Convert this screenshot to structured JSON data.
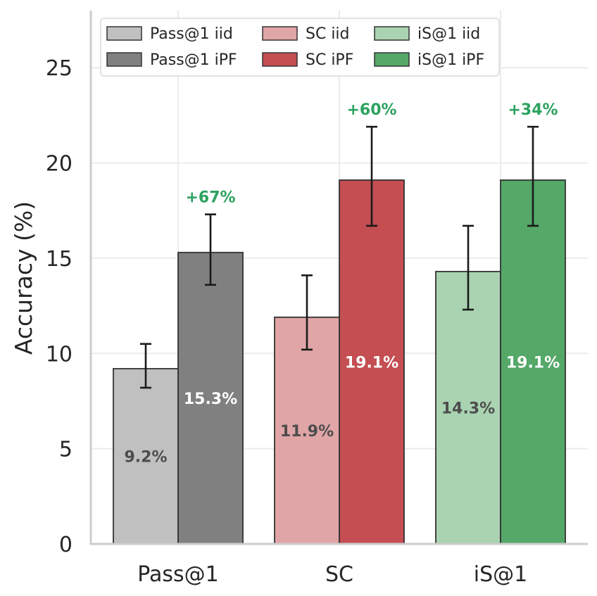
{
  "chart_data": {
    "type": "bar",
    "title": "",
    "xlabel": "",
    "ylabel": "Accuracy (%)",
    "ylim": [
      0,
      28
    ],
    "yticks": [
      "0",
      "5",
      "10",
      "15",
      "20",
      "25"
    ],
    "grid": true,
    "legend_position": "top-left",
    "categories": [
      "Pass@1",
      "SC",
      "iS@1"
    ],
    "groups": [
      {
        "category": "Pass@1",
        "bars": [
          {
            "series": "Pass@1 iid",
            "value": 9.2,
            "err_low": 8.2,
            "err_high": 10.5,
            "label": "9.2%",
            "color": "#c0c0c0",
            "label_color": "#4d4d4d"
          },
          {
            "series": "Pass@1 iPF",
            "value": 15.3,
            "err_low": 13.6,
            "err_high": 17.3,
            "label": "15.3%",
            "color": "#808080",
            "label_color": "#ffffff"
          }
        ],
        "improvement": "+67%"
      },
      {
        "category": "SC",
        "bars": [
          {
            "series": "SC iid",
            "value": 11.9,
            "err_low": 10.2,
            "err_high": 14.1,
            "label": "11.9%",
            "color": "#e0a5a7",
            "label_color": "#4d4d4d"
          },
          {
            "series": "SC iPF",
            "value": 19.1,
            "err_low": 16.7,
            "err_high": 21.9,
            "label": "19.1%",
            "color": "#c44e52",
            "label_color": "#ffffff"
          }
        ],
        "improvement": "+60%"
      },
      {
        "category": "iS@1",
        "bars": [
          {
            "series": "iS@1 iid",
            "value": 14.3,
            "err_low": 12.3,
            "err_high": 16.7,
            "label": "14.3%",
            "color": "#a9d3b1",
            "label_color": "#4d4d4d"
          },
          {
            "series": "iS@1 iPF",
            "value": 19.1,
            "err_low": 16.7,
            "err_high": 21.9,
            "label": "19.1%",
            "color": "#55a868",
            "label_color": "#ffffff"
          }
        ],
        "improvement": "+34%"
      }
    ],
    "legend": [
      {
        "name": "Pass@1 iid",
        "color": "#c0c0c0"
      },
      {
        "name": "Pass@1 iPF",
        "color": "#808080"
      },
      {
        "name": "SC iid",
        "color": "#e0a5a7"
      },
      {
        "name": "SC iPF",
        "color": "#c44e52"
      },
      {
        "name": "iS@1 iid",
        "color": "#a9d3b1"
      },
      {
        "name": "iS@1 iPF",
        "color": "#55a868"
      }
    ],
    "improvement_color": "#2ca25f"
  }
}
